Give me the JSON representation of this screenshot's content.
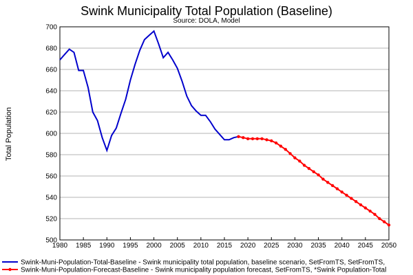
{
  "chart_data": {
    "type": "line",
    "title": "Swink Municipality Total Population (Baseline)",
    "subtitle": "Source:  DOLA, Model",
    "xlabel": "",
    "ylabel": "Total Population",
    "xlim": [
      1980,
      2050
    ],
    "ylim": [
      500,
      700
    ],
    "x_ticks": [
      "1980",
      "1985",
      "1990",
      "1995",
      "2000",
      "2005",
      "2010",
      "2015",
      "2020",
      "2025",
      "2030",
      "2035",
      "2040",
      "2045",
      "2050"
    ],
    "y_ticks": [
      "500",
      "520",
      "540",
      "560",
      "580",
      "600",
      "620",
      "640",
      "660",
      "680",
      "700"
    ],
    "grid": true,
    "legend_position": "bottom",
    "series": [
      {
        "name": "Swink-Muni-Population-Total-Baseline - Swink municipality total population, baseline scenario, SetFromTS, SetFromTS,",
        "color": "#0000cc",
        "marker": "none",
        "x": [
          1980,
          1981,
          1982,
          1983,
          1984,
          1985,
          1986,
          1987,
          1988,
          1989,
          1990,
          1991,
          1992,
          1993,
          1994,
          1995,
          1996,
          1997,
          1998,
          1999,
          2000,
          2001,
          2002,
          2003,
          2004,
          2005,
          2006,
          2007,
          2008,
          2009,
          2010,
          2011,
          2012,
          2013,
          2014,
          2015,
          2016,
          2017,
          2018
        ],
        "values": [
          669,
          674,
          679,
          676,
          659,
          659,
          643,
          620,
          612,
          596,
          584,
          598,
          605,
          619,
          632,
          650,
          665,
          678,
          688,
          692,
          696,
          684,
          671,
          676,
          669,
          661,
          649,
          635,
          626,
          621,
          617,
          617,
          611,
          604,
          599,
          594,
          594,
          596,
          597
        ]
      },
      {
        "name": "Swink-Muni-Population-Forecast-Baseline - Swink municipality population forecast, SetFromTS, *Swink Population-Total",
        "color": "#ff0000",
        "marker": "circle",
        "x": [
          2018,
          2019,
          2020,
          2021,
          2022,
          2023,
          2024,
          2025,
          2026,
          2027,
          2028,
          2029,
          2030,
          2031,
          2032,
          2033,
          2034,
          2035,
          2036,
          2037,
          2038,
          2039,
          2040,
          2041,
          2042,
          2043,
          2044,
          2045,
          2046,
          2047,
          2048,
          2049,
          2050
        ],
        "values": [
          597,
          596,
          595,
          595,
          595,
          595,
          594,
          593,
          591,
          588,
          585,
          581,
          577,
          574,
          570,
          567,
          564,
          561,
          557,
          554,
          551,
          548,
          545,
          542,
          539,
          536,
          533,
          530,
          527,
          524,
          520,
          517,
          514
        ]
      }
    ]
  }
}
